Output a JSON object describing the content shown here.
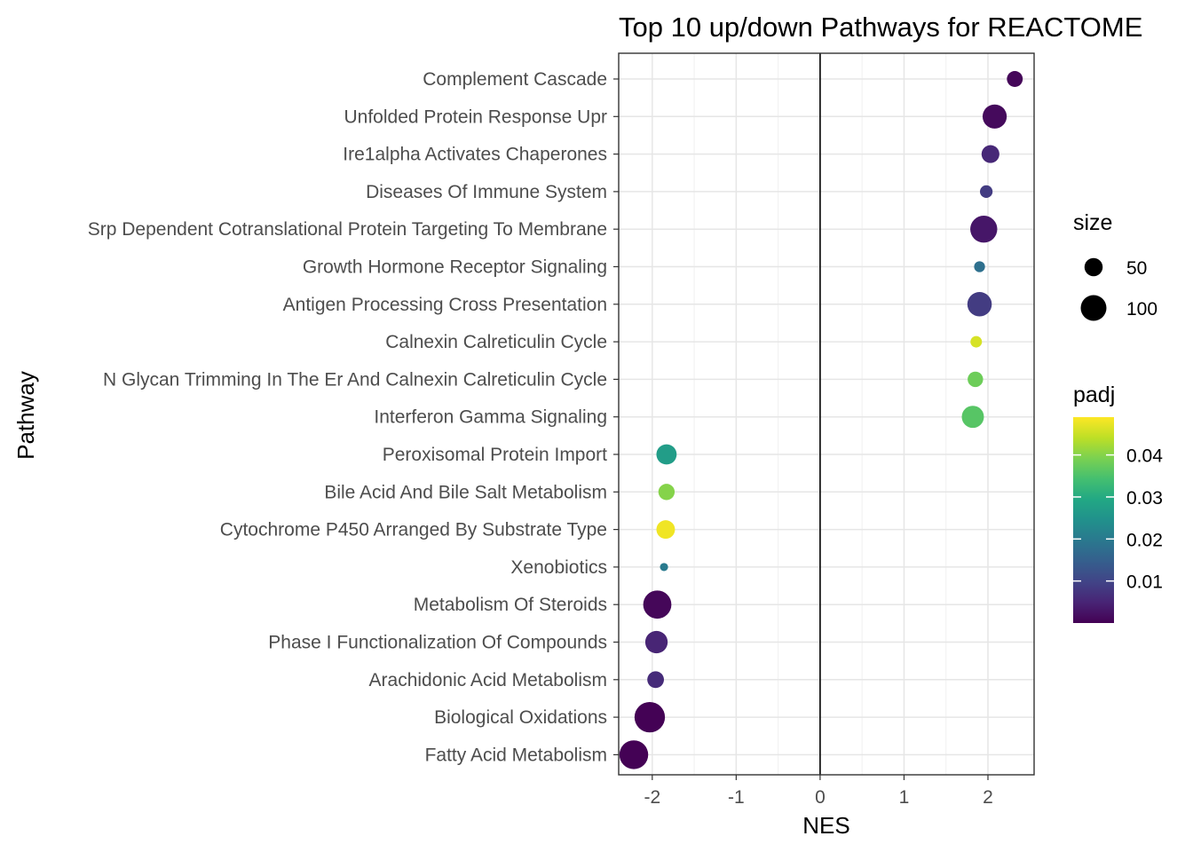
{
  "chart_data": {
    "type": "scatter",
    "title": "Top 10 up/down Pathways for  REACTOME",
    "xlabel": "NES",
    "ylabel": "Pathway",
    "xlim": [
      -2.4,
      2.55
    ],
    "xticks": [
      -2,
      -1,
      0,
      1,
      2
    ],
    "xtick_labels": [
      "-2",
      "-1",
      "0",
      "1",
      "2"
    ],
    "grid": true,
    "reference_line_x": 0,
    "points": [
      {
        "pathway": "Complement Cascade",
        "nes": 2.32,
        "size": 38,
        "padj": 0.0008
      },
      {
        "pathway": "Unfolded Protein Response Upr",
        "nes": 2.08,
        "size": 88,
        "padj": 0.0012
      },
      {
        "pathway": "Ire1alpha Activates Chaperones",
        "nes": 2.03,
        "size": 48,
        "padj": 0.0055
      },
      {
        "pathway": "Diseases Of Immune System",
        "nes": 1.98,
        "size": 24,
        "padj": 0.0085
      },
      {
        "pathway": "Srp Dependent Cotranslational Protein Targeting To Membrane",
        "nes": 1.95,
        "size": 110,
        "padj": 0.003
      },
      {
        "pathway": "Growth Hormone Receptor Signaling",
        "nes": 1.9,
        "size": 18,
        "padj": 0.018
      },
      {
        "pathway": "Antigen Processing Cross Presentation",
        "nes": 1.9,
        "size": 90,
        "padj": 0.0085
      },
      {
        "pathway": "Calnexin Calreticulin Cycle",
        "nes": 1.86,
        "size": 20,
        "padj": 0.046
      },
      {
        "pathway": "N Glycan Trimming In The Er And Calnexin Calreticulin Cycle",
        "nes": 1.85,
        "size": 36,
        "padj": 0.038
      },
      {
        "pathway": "Interferon Gamma Signaling",
        "nes": 1.82,
        "size": 74,
        "padj": 0.036
      },
      {
        "pathway": "Peroxisomal Protein Import",
        "nes": -1.83,
        "size": 62,
        "padj": 0.027
      },
      {
        "pathway": "Bile Acid And Bile Salt Metabolism",
        "nes": -1.83,
        "size": 40,
        "padj": 0.04
      },
      {
        "pathway": "Cytochrome P450 Arranged By Substrate Type",
        "nes": -1.84,
        "size": 52,
        "padj": 0.048
      },
      {
        "pathway": "Xenobiotics",
        "nes": -1.86,
        "size": 10,
        "padj": 0.02
      },
      {
        "pathway": "Metabolism Of Steroids",
        "nes": -1.94,
        "size": 120,
        "padj": 0.0008
      },
      {
        "pathway": "Phase I Functionalization Of Compounds",
        "nes": -1.95,
        "size": 76,
        "padj": 0.005
      },
      {
        "pathway": "Arachidonic Acid Metabolism",
        "nes": -1.96,
        "size": 42,
        "padj": 0.006
      },
      {
        "pathway": "Biological Oxidations",
        "nes": -2.03,
        "size": 140,
        "padj": 0.0001
      },
      {
        "pathway": "Fatty Acid Metabolism",
        "nes": -2.22,
        "size": 125,
        "padj": 0.0001
      }
    ],
    "legend_size": {
      "title": "size",
      "breaks": [
        50,
        100
      ],
      "labels": [
        "50",
        "100"
      ]
    },
    "legend_color": {
      "title": "padj",
      "breaks": [
        0.01,
        0.02,
        0.03,
        0.04
      ],
      "labels": [
        "0.01",
        "0.02",
        "0.03",
        "0.04"
      ],
      "range": [
        0,
        0.049
      ],
      "palette": "viridis"
    }
  }
}
